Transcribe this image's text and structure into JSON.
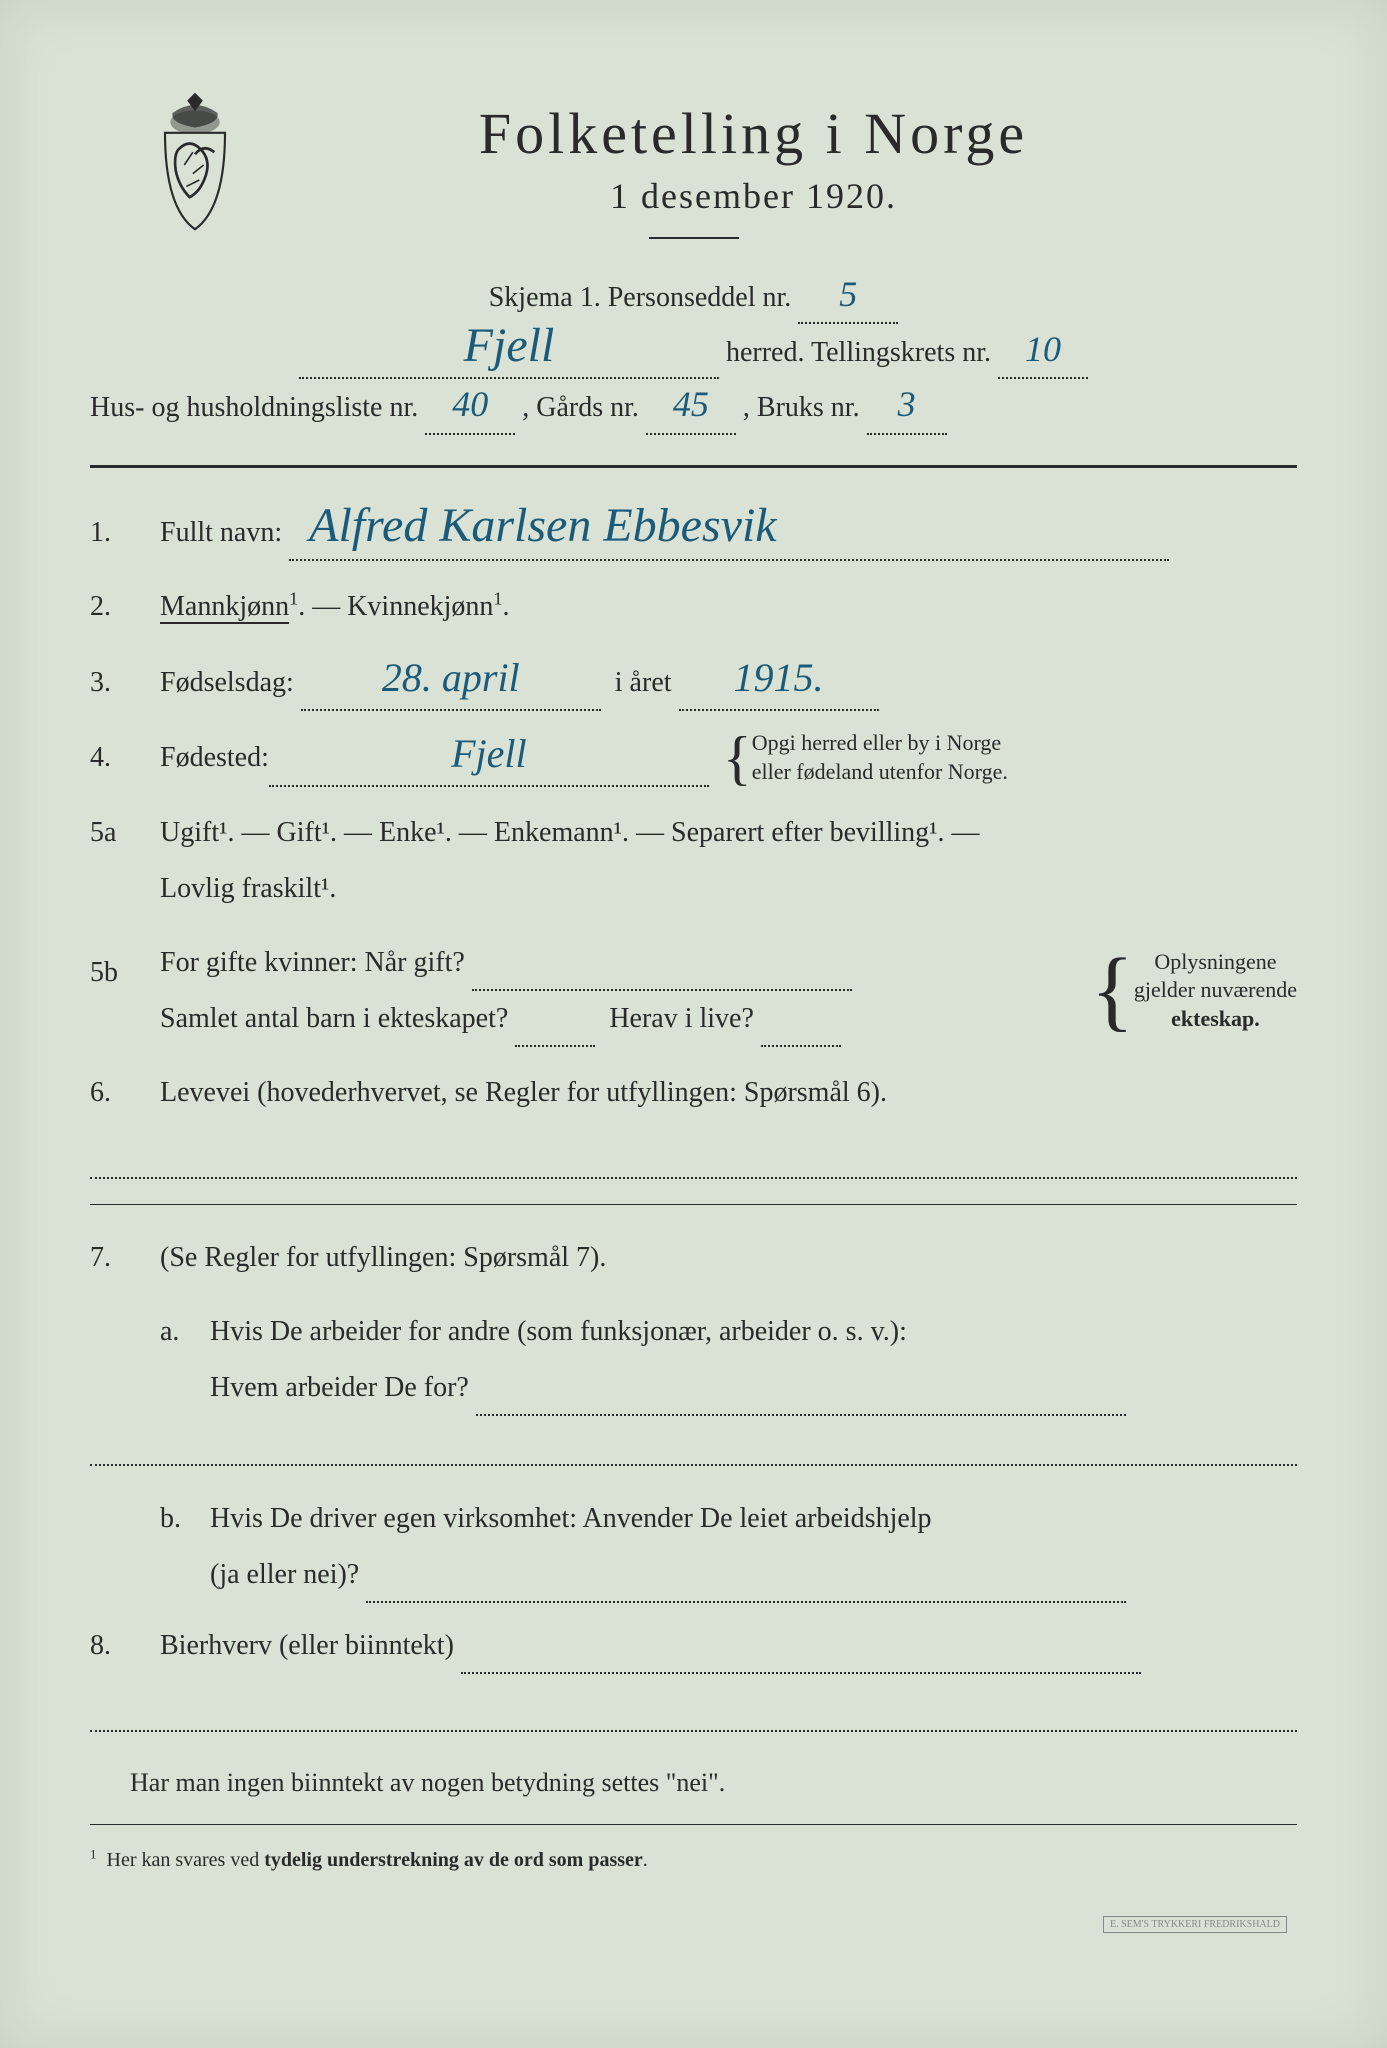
{
  "colors": {
    "paper": "#d9e2d4",
    "ink": "#2a2a2a",
    "handwriting": "#1a5a7a",
    "background": "#3a4540"
  },
  "header": {
    "title": "Folketelling  i  Norge",
    "subtitle": "1 desember 1920."
  },
  "meta": {
    "skjema_label": "Skjema 1.   Personseddel nr.",
    "personseddel_nr": "5",
    "herred_value": "Fjell",
    "herred_label": "herred.   Tellingskrets nr.",
    "tellingskrets_nr": "10",
    "hus_label": "Hus- og husholdningsliste nr.",
    "hus_nr": "40",
    "gards_label": ",  Gårds nr.",
    "gards_nr": "45",
    "bruks_label": ",  Bruks nr.",
    "bruks_nr": "3"
  },
  "q1": {
    "num": "1.",
    "label": "Fullt navn:",
    "value": "Alfred  Karlsen  Ebbesvik"
  },
  "q2": {
    "num": "2.",
    "mann": "Mannkjønn",
    "sep": ". — ",
    "kvinne": "Kvinnekjønn",
    "tail": "."
  },
  "q3": {
    "num": "3.",
    "label": "Fødselsdag:",
    "day": "28. april",
    "mid": "i året",
    "year": "1915."
  },
  "q4": {
    "num": "4.",
    "label": "Fødested:",
    "value": "Fjell",
    "note1": "Opgi herred eller by i Norge",
    "note2": "eller fødeland utenfor Norge."
  },
  "q5a": {
    "num": "5a",
    "text": "Ugift¹. — Gift¹. — Enke¹. — Enkemann¹. — Separert efter bevilling¹. —",
    "text2": "Lovlig fraskilt¹."
  },
  "q5b": {
    "num": "5b",
    "line1a": "For gifte kvinner:  Når gift?",
    "line2a": "Samlet antal barn i ekteskapet?",
    "line2b": "Herav i live?",
    "note1": "Oplysningene",
    "note2": "gjelder nuværende",
    "note3": "ekteskap."
  },
  "q6": {
    "num": "6.",
    "text": "Levevei (hovederhvervet, se Regler for utfyllingen:  Spørsmål 6)."
  },
  "q7": {
    "num": "7.",
    "intro": "(Se Regler for utfyllingen:  Spørsmål 7).",
    "a_mark": "a.",
    "a1": "Hvis De arbeider for andre (som funksjonær, arbeider o. s. v.):",
    "a2": "Hvem arbeider De for?",
    "b_mark": "b.",
    "b1": "Hvis De driver egen virksomhet:  Anvender De leiet arbeidshjelp",
    "b2": "(ja eller nei)?"
  },
  "q8": {
    "num": "8.",
    "label": "Bierhverv (eller biinntekt)"
  },
  "closing": "Har man ingen biinntekt av nogen betydning settes \"nei\".",
  "footnote": {
    "mark": "1",
    "text": "Her kan svares ved tydelig understrekning av de ord som passer."
  },
  "printer": "E. SEM'S TRYKKERI FREDRIKSHALD"
}
